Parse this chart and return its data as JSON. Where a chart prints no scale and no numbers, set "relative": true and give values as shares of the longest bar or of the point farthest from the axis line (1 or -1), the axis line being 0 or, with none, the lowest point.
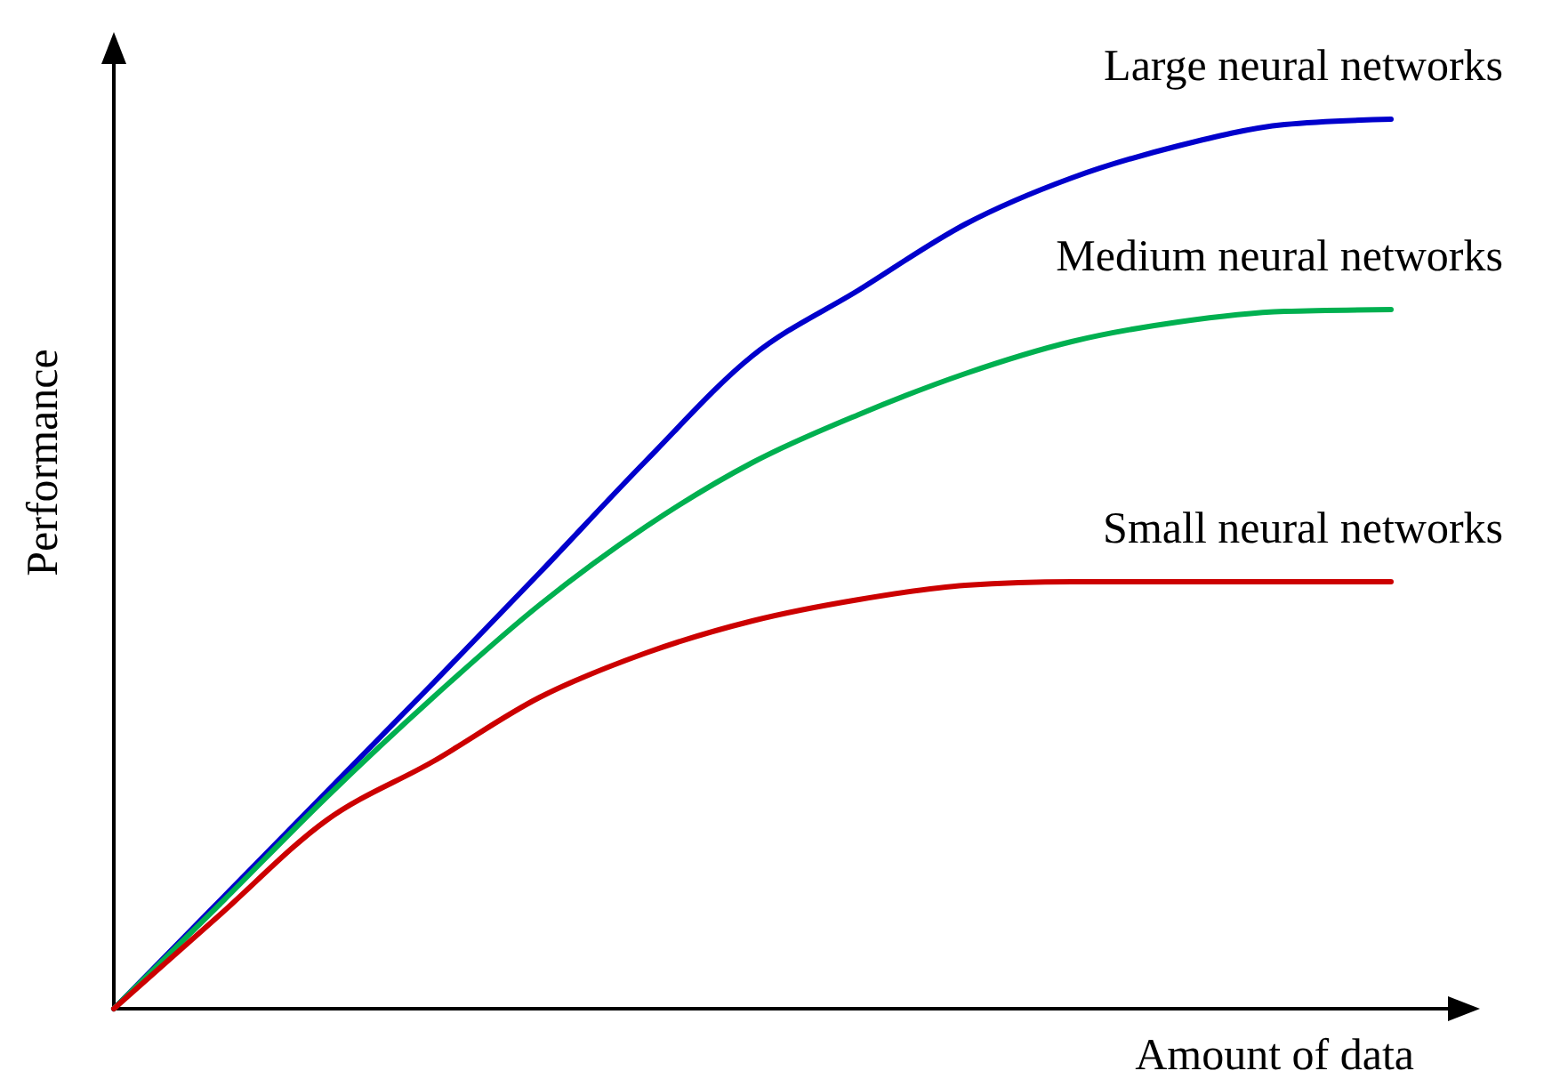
{
  "chart_data": {
    "type": "line",
    "relative": true,
    "xlabel": "Amount of data",
    "ylabel": "Performance",
    "marker": "none",
    "line_style": "solid",
    "categories": [
      null,
      null,
      null,
      null,
      null,
      null,
      null,
      null,
      null,
      null,
      null,
      null,
      null
    ],
    "series": [
      {
        "name": "Large neural networks",
        "color": "#0000cc",
        "values": [
          0,
          0.122,
          0.244,
          0.366,
          0.49,
          0.616,
          0.734,
          0.808,
          0.882,
          0.934,
          0.97,
          0.994,
          1.0
        ]
      },
      {
        "name": "Medium neural networks",
        "color": "#00b050",
        "values": [
          0,
          0.118,
          0.238,
          0.35,
          0.454,
          0.542,
          0.614,
          0.668,
          0.714,
          0.75,
          0.772,
          0.784,
          0.786
        ]
      },
      {
        "name": "Small neural networks",
        "color": "#cc0000",
        "values": [
          0,
          0.106,
          0.212,
          0.278,
          0.35,
          0.4,
          0.436,
          0.46,
          0.476,
          0.48,
          0.48,
          0.48,
          0.48
        ]
      }
    ]
  }
}
